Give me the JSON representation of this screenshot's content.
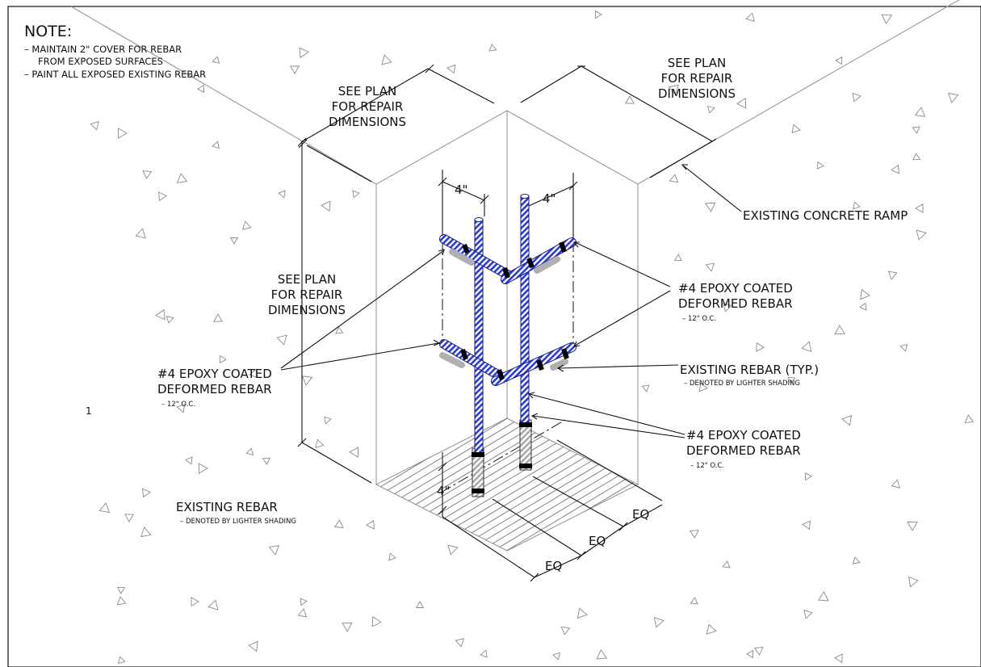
{
  "note": {
    "title": "NOTE:",
    "lines": [
      "– MAINTAIN 2\" COVER FOR REBAR",
      "FROM EXPOSED SURFACES",
      "– PAINT ALL EXPOSED EXISTING REBAR"
    ]
  },
  "see_plan_top_left": [
    "SEE PLAN",
    "FOR REPAIR",
    "DIMENSIONS"
  ],
  "see_plan_top_right": [
    "SEE PLAN",
    "FOR REPAIR",
    "DIMENSIONS"
  ],
  "see_plan_left": [
    "SEE PLAN",
    "FOR REPAIR",
    "DIMENSIONS"
  ],
  "existing_concrete_ramp": "EXISTING CONCRETE RAMP",
  "rebar_right_upper": {
    "lines": [
      "#4 EPOXY COATED",
      "DEFORMED REBAR"
    ],
    "sub": "– 12\" O.C."
  },
  "rebar_left": {
    "lines": [
      "#4 EPOXY COATED",
      "DEFORMED REBAR"
    ],
    "sub": "– 12\" O.C."
  },
  "existing_rebar_typ": {
    "line": "EXISTING REBAR (TYP.)",
    "sub": "– DENOTED BY LIGHTER SHADING"
  },
  "rebar_right_lower": {
    "lines": [
      "#4 EPOXY COATED",
      "DEFORMED REBAR"
    ],
    "sub": "– 12\" O.C."
  },
  "existing_rebar_bottom": {
    "line": "EXISTING REBAR",
    "sub": "– DENOTED BY LIGHTER SHADING"
  },
  "dim_4in": "4\"",
  "dim_eq": "EQ",
  "stray_mark": "1",
  "colors": {
    "epoxy_rebar": "#2b3bd8",
    "existing_rebar": "#b9b9b9",
    "linework": "#111111",
    "aggregate": "#8a8a8a"
  }
}
